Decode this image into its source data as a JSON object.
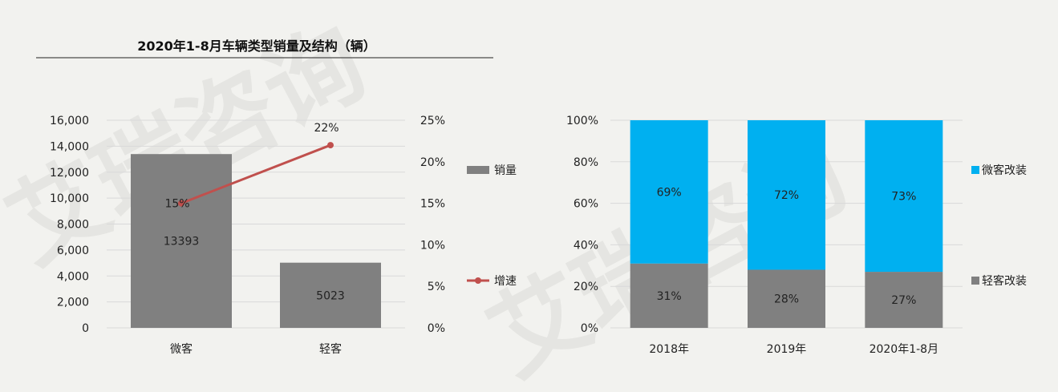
{
  "watermark": "艾瑞咨询",
  "chart_data": [
    {
      "type": "bar",
      "title": "2020年1-8月车辆类型销量及结构（辆）",
      "categories": [
        "微客",
        "轻客"
      ],
      "ylim": [
        0,
        16000
      ],
      "yticks": [
        "0",
        "2,000",
        "4,000",
        "6,000",
        "8,000",
        "10,000",
        "12,000",
        "14,000",
        "16,000"
      ],
      "y2lim": [
        0,
        25
      ],
      "y2ticks": [
        "0%",
        "5%",
        "10%",
        "15%",
        "20%",
        "25%"
      ],
      "grid": true,
      "legend_position": "right",
      "series": [
        {
          "name": "销量",
          "kind": "bar",
          "color": "#808080",
          "values": [
            13393,
            5023
          ],
          "labels": [
            "13393",
            "5023"
          ]
        },
        {
          "name": "增速",
          "kind": "line",
          "axis": "secondary",
          "color": "#c0504d",
          "values": [
            15,
            22
          ],
          "labels": [
            "15%",
            "22%"
          ]
        }
      ]
    },
    {
      "type": "bar",
      "stacked": true,
      "categories": [
        "2018年",
        "2019年",
        "2020年1-8月"
      ],
      "ylim": [
        0,
        100
      ],
      "yticks": [
        "0%",
        "20%",
        "40%",
        "60%",
        "80%",
        "100%"
      ],
      "grid": true,
      "legend_position": "right",
      "series": [
        {
          "name": "轻客改装",
          "color": "#808080",
          "values": [
            31,
            28,
            27
          ],
          "labels": [
            "31%",
            "28%",
            "27%"
          ]
        },
        {
          "name": "微客改装",
          "color": "#00b0f0",
          "values": [
            69,
            72,
            73
          ],
          "labels": [
            "69%",
            "72%",
            "73%"
          ]
        }
      ]
    }
  ]
}
